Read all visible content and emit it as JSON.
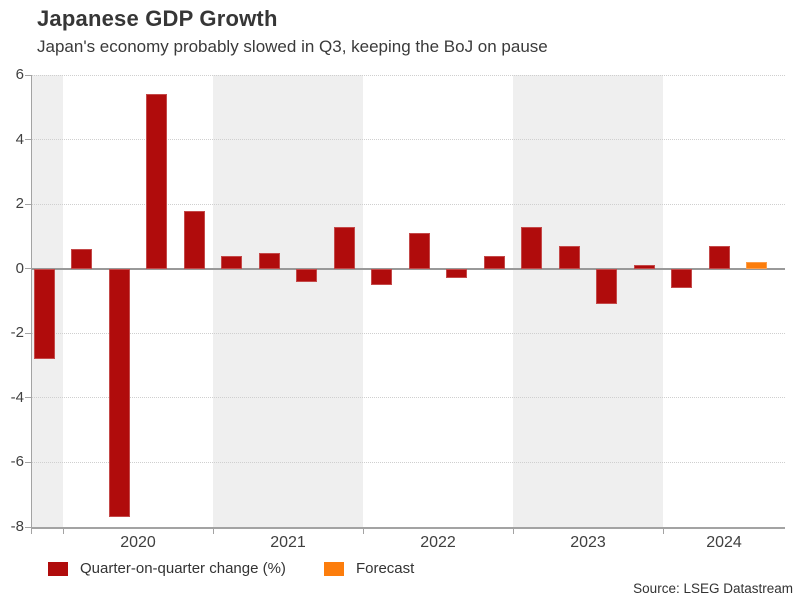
{
  "header": {
    "title": "Japanese GDP Growth",
    "subtitle": "Japan's economy probably slowed in Q3, keeping the BoJ on pause"
  },
  "source": "Source: LSEG Datastream",
  "chart_data": {
    "type": "bar",
    "title": "Japanese GDP Growth",
    "subtitle": "Japan's economy probably slowed in Q3, keeping the BoJ on pause",
    "xlabel": "",
    "ylabel": "",
    "ylim": [
      -8,
      6
    ],
    "ytick_step": 2,
    "ytick_labels": [
      "6",
      "4",
      "2",
      "0",
      "-2",
      "-4",
      "-6",
      "-8"
    ],
    "grid": "horizontal-dotted",
    "legend_position": "bottom-left",
    "year_labels": [
      "2020",
      "2021",
      "2022",
      "2023",
      "2024"
    ],
    "legend_items": [
      {
        "label": "Quarter-on-quarter change (%)",
        "color": "#B00C0C"
      },
      {
        "label": "Forecast",
        "color": "#FC7D0C"
      }
    ],
    "bars": [
      {
        "label": "2019 Q4",
        "value": -2.8
      },
      {
        "label": "2020 Q1",
        "value": 0.6
      },
      {
        "label": "2020 Q2",
        "value": -7.7
      },
      {
        "label": "2020 Q3",
        "value": 5.4
      },
      {
        "label": "2020 Q4",
        "value": 1.8
      },
      {
        "label": "2021 Q1",
        "value": 0.4
      },
      {
        "label": "2021 Q2",
        "value": 0.5
      },
      {
        "label": "2021 Q3",
        "value": -0.4
      },
      {
        "label": "2021 Q4",
        "value": 1.3
      },
      {
        "label": "2022 Q1",
        "value": -0.5
      },
      {
        "label": "2022 Q2",
        "value": 1.1
      },
      {
        "label": "2022 Q3",
        "value": -0.3
      },
      {
        "label": "2022 Q4",
        "value": 0.4
      },
      {
        "label": "2023 Q1",
        "value": 1.3
      },
      {
        "label": "2023 Q2",
        "value": 0.7
      },
      {
        "label": "2023 Q3",
        "value": -1.1
      },
      {
        "label": "2023 Q4",
        "value": 0.1
      },
      {
        "label": "2024 Q1",
        "value": -0.6
      },
      {
        "label": "2024 Q2",
        "value": 0.7
      },
      {
        "label": "2024 Q3",
        "value": 0.2,
        "forecast": true
      }
    ],
    "colors": {
      "bar": "#B00C0C",
      "forecast": "#FC7D0C",
      "band": "#EFEFEF",
      "zero_line": "#999999",
      "axis": "#A3A3A3",
      "gridline": "#CFCFCF",
      "text": "#404040"
    }
  }
}
